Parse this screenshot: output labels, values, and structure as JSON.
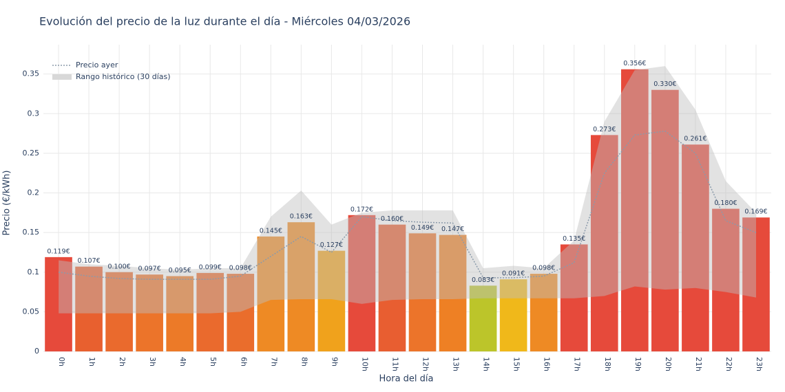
{
  "chart_data": {
    "type": "bar",
    "title": "Evolución del precio de la luz durante el día - Miércoles 04/03/2026",
    "xlabel": "Hora del día",
    "ylabel": "Precio (€/kWh)",
    "categories": [
      "0h",
      "1h",
      "2h",
      "3h",
      "4h",
      "5h",
      "6h",
      "7h",
      "8h",
      "9h",
      "10h",
      "11h",
      "12h",
      "13h",
      "14h",
      "15h",
      "16h",
      "17h",
      "18h",
      "19h",
      "20h",
      "21h",
      "22h",
      "23h"
    ],
    "values": [
      0.119,
      0.107,
      0.1,
      0.097,
      0.095,
      0.099,
      0.098,
      0.145,
      0.163,
      0.127,
      0.172,
      0.16,
      0.149,
      0.147,
      0.083,
      0.091,
      0.098,
      0.135,
      0.273,
      0.356,
      0.33,
      0.261,
      0.18,
      0.169
    ],
    "value_labels": [
      "0.119€",
      "0.107€",
      "0.100€",
      "0.097€",
      "0.095€",
      "0.099€",
      "0.098€",
      "0.145€",
      "0.163€",
      "0.127€",
      "0.172€",
      "0.160€",
      "0.149€",
      "0.147€",
      "0.083€",
      "0.091€",
      "0.098€",
      "0.135€",
      "0.273€",
      "0.356€",
      "0.330€",
      "0.261€",
      "0.180€",
      "0.169€"
    ],
    "colors": [
      "#e64a3b",
      "#e8602f",
      "#ea6a2d",
      "#ec742a",
      "#ec7a28",
      "#ea6a2d",
      "#ea6d2c",
      "#ee8a24",
      "#ee8a24",
      "#f0a21c",
      "#e64a3b",
      "#e85e31",
      "#ec742a",
      "#ee8024",
      "#bcc52a",
      "#f0b81a",
      "#ee8a24",
      "#e64a3b",
      "#e64a3b",
      "#e64a3b",
      "#e64a3b",
      "#e64a3b",
      "#e64a3b",
      "#e64a3b"
    ],
    "yesterday": {
      "name": "Precio ayer",
      "color": "#8a9aaa",
      "values": [
        0.1,
        0.095,
        0.092,
        0.091,
        0.091,
        0.091,
        0.095,
        0.12,
        0.145,
        0.125,
        0.17,
        0.165,
        0.163,
        0.162,
        0.093,
        0.093,
        0.095,
        0.112,
        0.225,
        0.273,
        0.278,
        0.25,
        0.165,
        0.15
      ]
    },
    "range": {
      "name": "Rango histórico (30 días)",
      "color": "rgba(190,190,190,0.45)",
      "high": [
        0.115,
        0.11,
        0.108,
        0.105,
        0.103,
        0.105,
        0.105,
        0.17,
        0.203,
        0.16,
        0.175,
        0.178,
        0.178,
        0.178,
        0.105,
        0.108,
        0.105,
        0.14,
        0.29,
        0.355,
        0.36,
        0.305,
        0.215,
        0.175
      ],
      "low": [
        0.048,
        0.048,
        0.048,
        0.048,
        0.048,
        0.048,
        0.05,
        0.065,
        0.066,
        0.066,
        0.06,
        0.065,
        0.066,
        0.066,
        0.067,
        0.067,
        0.067,
        0.067,
        0.07,
        0.082,
        0.078,
        0.08,
        0.075,
        0.068
      ]
    },
    "ylim": [
      0,
      0.387
    ],
    "yticks": [
      0,
      0.05,
      0.1,
      0.15,
      0.2,
      0.25,
      0.3,
      0.35
    ],
    "grid": true
  }
}
